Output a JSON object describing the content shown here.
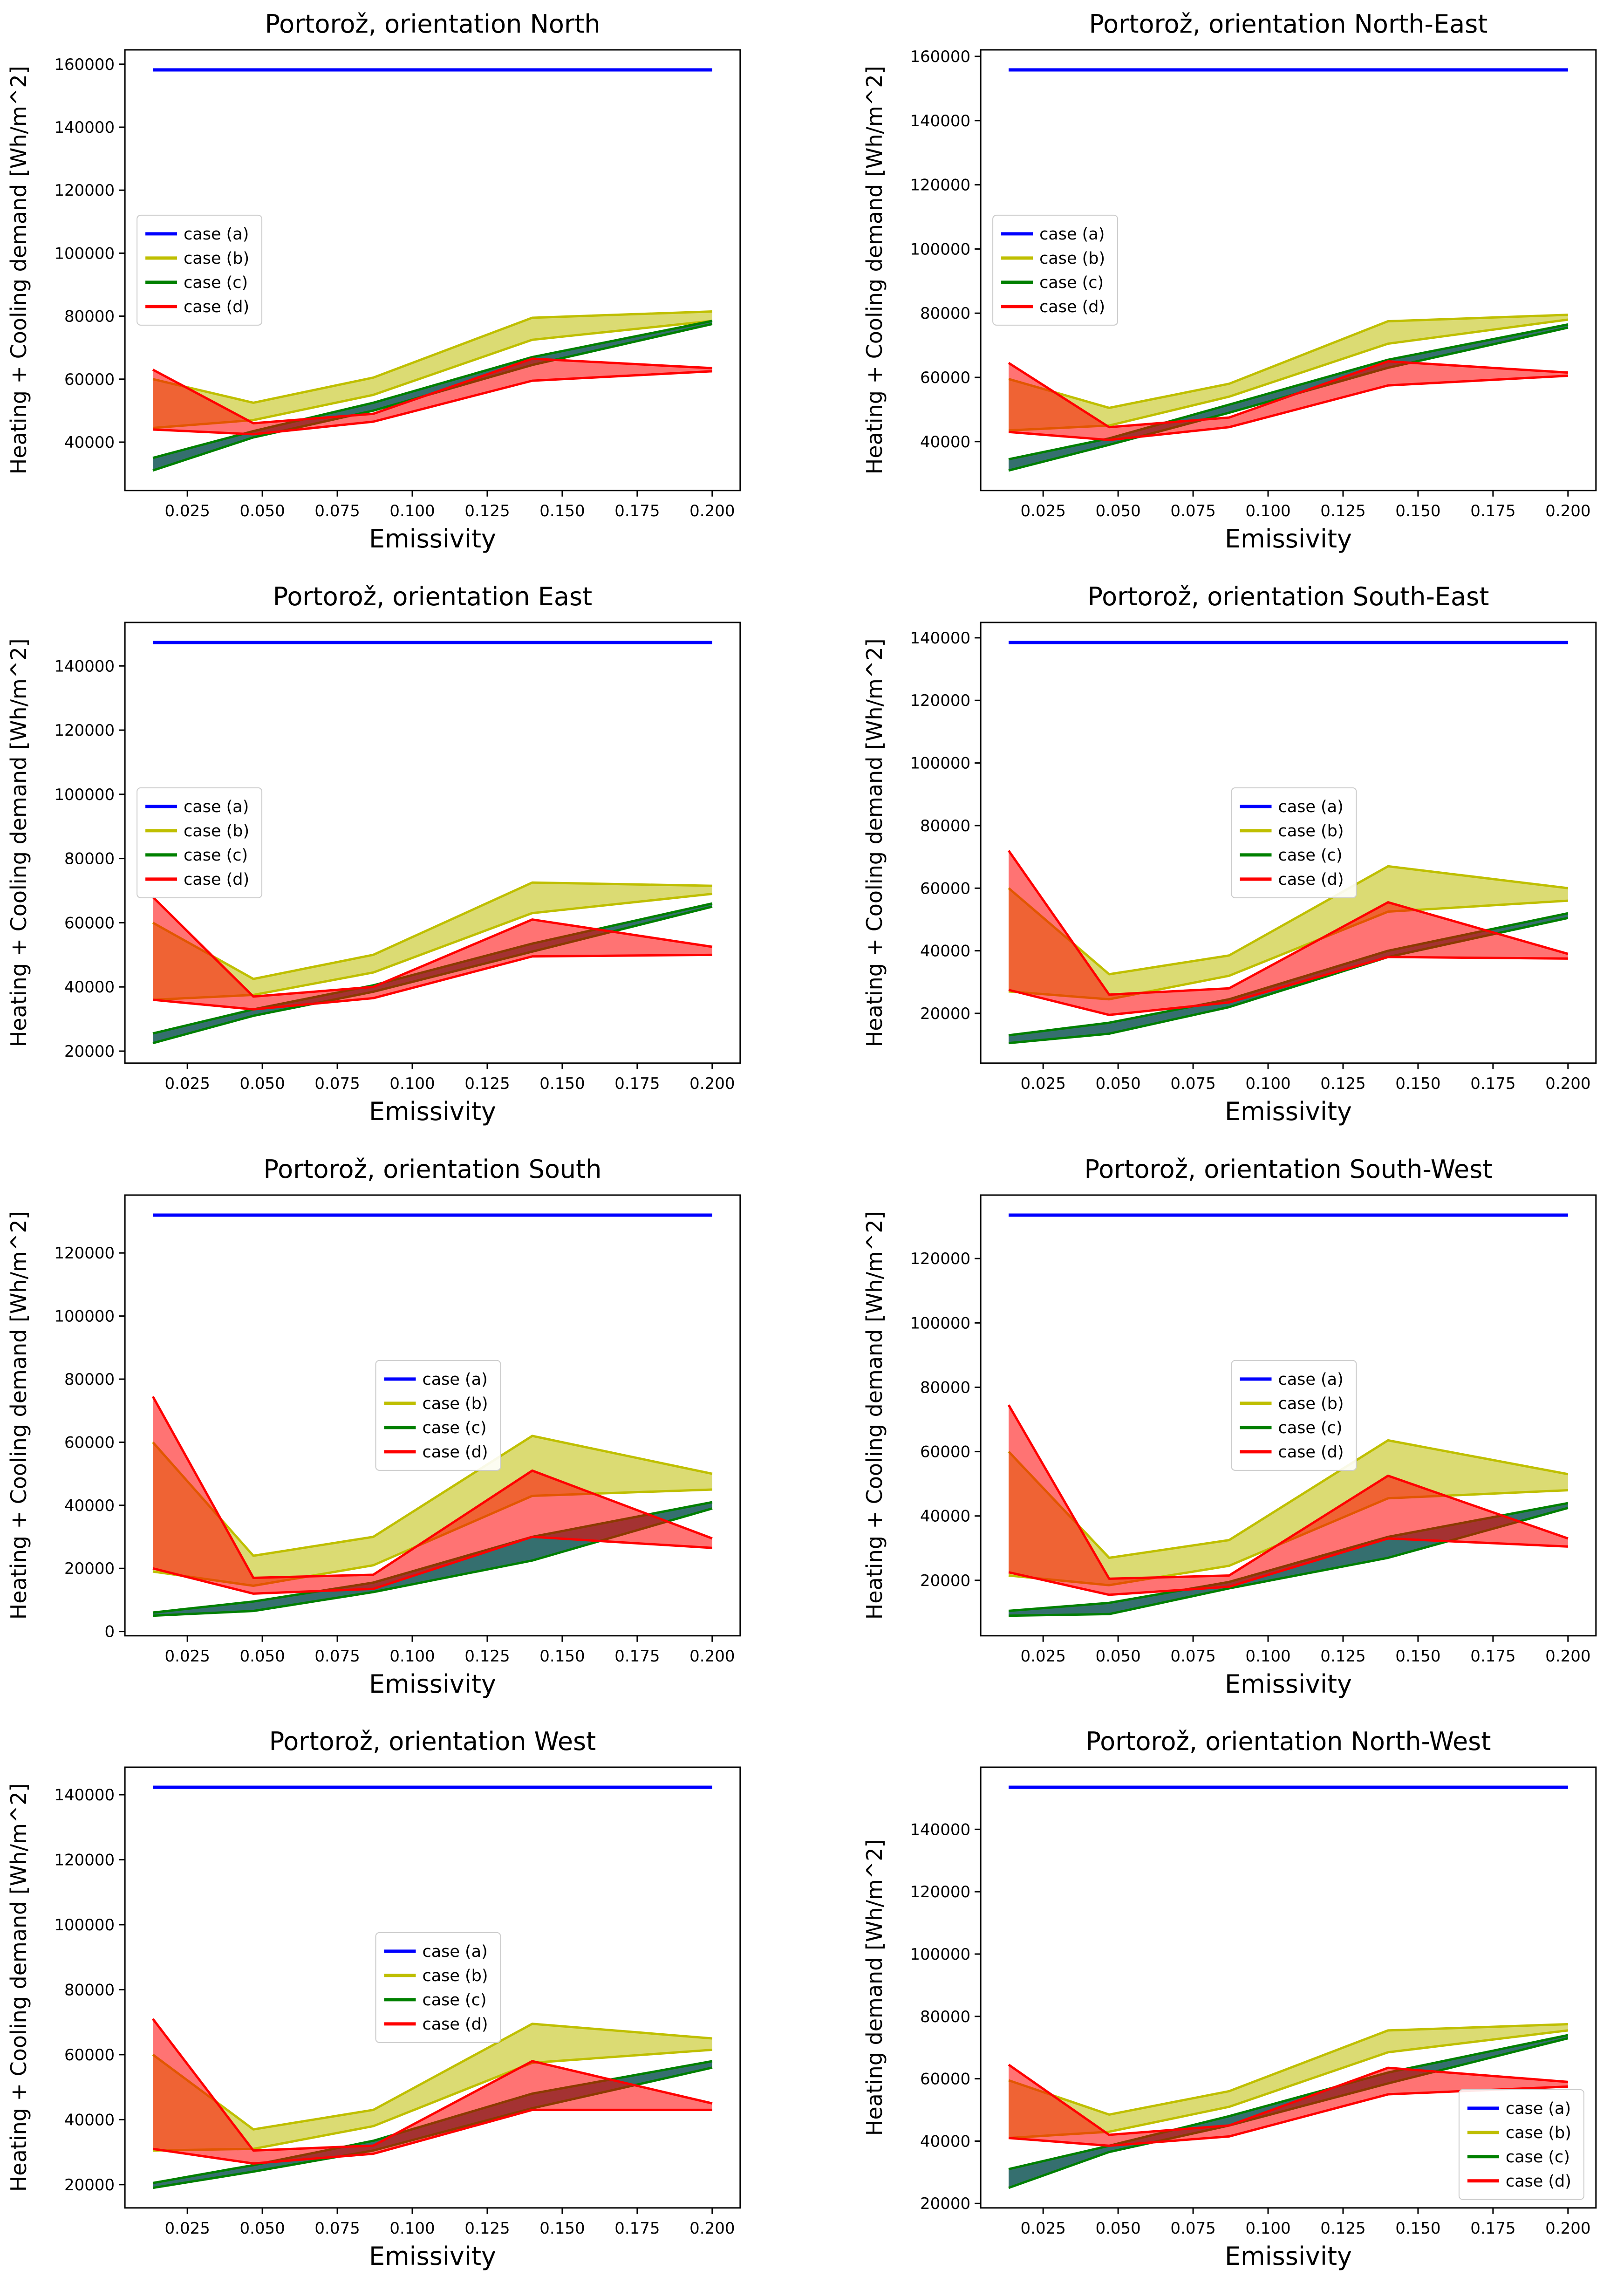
{
  "figure": {
    "background": "#ffffff",
    "rows": 4,
    "columns": 2,
    "legend_labels": [
      "case (a)",
      "case (b)",
      "case (c)",
      "case (d)"
    ],
    "colors": {
      "case_a_line": "#0000ff",
      "case_b_line": "#bfbf00",
      "case_b_fill": "rgba(189,189,0,0.55)",
      "case_c_line": "#008000",
      "case_c_fill": "rgba(31,95,95,0.9)",
      "case_d_line": "#ff0000",
      "case_d_fill": "rgba(255,0,0,0.55)",
      "axes": "#000000",
      "legend_border": "#cccccc"
    }
  },
  "chart_data": [
    {
      "type": "area",
      "slug": "north",
      "title": "Portorož, orientation North",
      "xlabel": "Emissivity",
      "ylabel": "Heating + Cooling demand [Wh/m^2]",
      "x": [
        0.0135,
        0.047,
        0.087,
        0.14,
        0.2
      ],
      "x_ticks": [
        0.025,
        0.05,
        0.075,
        0.1,
        0.125,
        0.15,
        0.175,
        0.2
      ],
      "y_tick_step": 20000,
      "legend_loc": "center-left",
      "case_a": 158200,
      "bands": {
        "b": {
          "upper": [
            60000,
            52500,
            60500,
            79500,
            81500
          ],
          "lower": [
            44500,
            47000,
            55000,
            72500,
            78500
          ]
        },
        "c": {
          "upper": [
            35000,
            43500,
            52500,
            67000,
            78500
          ],
          "lower": [
            31000,
            41500,
            50000,
            64500,
            77500
          ]
        },
        "d": {
          "upper": [
            63000,
            46000,
            49000,
            66500,
            63500
          ],
          "lower": [
            44000,
            42500,
            46500,
            59500,
            62500
          ]
        }
      }
    },
    {
      "type": "area",
      "slug": "north-east",
      "title": "Portorož, orientation North-East",
      "xlabel": "Emissivity",
      "ylabel": "Heating + Cooling demand [Wh/m^2]",
      "x": [
        0.0135,
        0.047,
        0.087,
        0.14,
        0.2
      ],
      "x_ticks": [
        0.025,
        0.05,
        0.075,
        0.1,
        0.125,
        0.15,
        0.175,
        0.2
      ],
      "y_tick_step": 20000,
      "legend_loc": "center-left",
      "case_a": 155800,
      "bands": {
        "b": {
          "upper": [
            59500,
            50500,
            58000,
            77500,
            79500
          ],
          "lower": [
            43500,
            45000,
            54000,
            70500,
            78000
          ]
        },
        "c": {
          "upper": [
            34500,
            41000,
            51500,
            65500,
            76500
          ],
          "lower": [
            31000,
            39000,
            49000,
            63000,
            75500
          ]
        },
        "d": {
          "upper": [
            64500,
            44500,
            47500,
            65000,
            61500
          ],
          "lower": [
            43000,
            40500,
            44500,
            57500,
            60500
          ]
        }
      }
    },
    {
      "type": "area",
      "slug": "east",
      "title": "Portorož, orientation East",
      "xlabel": "Emissivity",
      "ylabel": "Heating + Cooling demand [Wh/m^2]",
      "x": [
        0.0135,
        0.047,
        0.087,
        0.14,
        0.2
      ],
      "x_ticks": [
        0.025,
        0.05,
        0.075,
        0.1,
        0.125,
        0.15,
        0.175,
        0.2
      ],
      "y_tick_step": 20000,
      "legend_loc": "center-left",
      "case_a": 147300,
      "bands": {
        "b": {
          "upper": [
            60000,
            42500,
            50000,
            72500,
            71500
          ],
          "lower": [
            36000,
            37500,
            44500,
            63000,
            69000
          ]
        },
        "c": {
          "upper": [
            25500,
            33000,
            40500,
            53500,
            66000
          ],
          "lower": [
            22500,
            31000,
            38500,
            51000,
            65000
          ]
        },
        "d": {
          "upper": [
            68000,
            37000,
            40000,
            61000,
            52500
          ],
          "lower": [
            36000,
            33000,
            36500,
            49500,
            50000
          ]
        }
      }
    },
    {
      "type": "area",
      "slug": "south-east",
      "title": "Portorož, orientation South-East",
      "xlabel": "Emissivity",
      "ylabel": "Heating + Cooling demand [Wh/m^2]",
      "x": [
        0.0135,
        0.047,
        0.087,
        0.14,
        0.2
      ],
      "x_ticks": [
        0.025,
        0.05,
        0.075,
        0.1,
        0.125,
        0.15,
        0.175,
        0.2
      ],
      "y_tick_step": 20000,
      "legend_loc": "center",
      "case_a": 138500,
      "bands": {
        "b": {
          "upper": [
            60000,
            32500,
            38500,
            67000,
            60000
          ],
          "lower": [
            27000,
            24500,
            32000,
            52500,
            56000
          ]
        },
        "c": {
          "upper": [
            13000,
            17000,
            24500,
            40000,
            52000
          ],
          "lower": [
            10500,
            13500,
            22000,
            38000,
            50500
          ]
        },
        "d": {
          "upper": [
            72000,
            26000,
            28000,
            55500,
            39000
          ],
          "lower": [
            27500,
            19500,
            23500,
            38000,
            37500
          ]
        }
      }
    },
    {
      "type": "area",
      "slug": "south",
      "title": "Portorož, orientation South",
      "xlabel": "Emissivity",
      "ylabel": "Heating + Cooling demand [Wh/m^2]",
      "x": [
        0.0135,
        0.047,
        0.087,
        0.14,
        0.2
      ],
      "x_ticks": [
        0.025,
        0.05,
        0.075,
        0.1,
        0.125,
        0.15,
        0.175,
        0.2
      ],
      "y_tick_step": 20000,
      "legend_loc": "center",
      "case_a": 132000,
      "bands": {
        "b": {
          "upper": [
            60000,
            24000,
            30000,
            62000,
            50000
          ],
          "lower": [
            19000,
            14500,
            21000,
            43000,
            45000
          ]
        },
        "c": {
          "upper": [
            6000,
            9500,
            15500,
            30000,
            41000
          ],
          "lower": [
            5000,
            6500,
            12500,
            22500,
            39000
          ]
        },
        "d": {
          "upper": [
            74500,
            17000,
            18000,
            51000,
            29500
          ],
          "lower": [
            20000,
            12000,
            13500,
            30000,
            26500
          ]
        }
      }
    },
    {
      "type": "area",
      "slug": "south-west",
      "title": "Portorož, orientation South-West",
      "xlabel": "Emissivity",
      "ylabel": "Heating + Cooling demand [Wh/m^2]",
      "x": [
        0.0135,
        0.047,
        0.087,
        0.14,
        0.2
      ],
      "x_ticks": [
        0.025,
        0.05,
        0.075,
        0.1,
        0.125,
        0.15,
        0.175,
        0.2
      ],
      "y_tick_step": 20000,
      "legend_loc": "center",
      "case_a": 133500,
      "bands": {
        "b": {
          "upper": [
            60000,
            27000,
            32500,
            63500,
            53000
          ],
          "lower": [
            21500,
            18500,
            24500,
            45500,
            48000
          ]
        },
        "c": {
          "upper": [
            10500,
            13000,
            19500,
            33500,
            44000
          ],
          "lower": [
            9000,
            9500,
            17500,
            27000,
            42500
          ]
        },
        "d": {
          "upper": [
            74500,
            20500,
            21500,
            52500,
            33000
          ],
          "lower": [
            22500,
            15500,
            18000,
            33000,
            30500
          ]
        }
      }
    },
    {
      "type": "area",
      "slug": "west",
      "title": "Portorož, orientation West",
      "xlabel": "Emissivity",
      "ylabel": "Heating + Cooling demand [Wh/m^2]",
      "x": [
        0.0135,
        0.047,
        0.087,
        0.14,
        0.2
      ],
      "x_ticks": [
        0.025,
        0.05,
        0.075,
        0.1,
        0.125,
        0.15,
        0.175,
        0.2
      ],
      "y_tick_step": 20000,
      "legend_loc": "center",
      "case_a": 142300,
      "bands": {
        "b": {
          "upper": [
            60000,
            37000,
            43000,
            69500,
            65000
          ],
          "lower": [
            30500,
            31000,
            38000,
            57500,
            61500
          ]
        },
        "c": {
          "upper": [
            20500,
            26000,
            33500,
            48000,
            58000
          ],
          "lower": [
            19000,
            24000,
            30500,
            43500,
            56000
          ]
        },
        "d": {
          "upper": [
            71000,
            30500,
            32000,
            58000,
            45000
          ],
          "lower": [
            31000,
            26500,
            29500,
            43000,
            43000
          ]
        }
      }
    },
    {
      "type": "area",
      "slug": "north-west",
      "title": "Portorož, orientation North-West",
      "xlabel": "Emissivity",
      "ylabel": "Heating demand [Wh/m^2]",
      "x": [
        0.0135,
        0.047,
        0.087,
        0.14,
        0.2
      ],
      "x_ticks": [
        0.025,
        0.05,
        0.075,
        0.1,
        0.125,
        0.15,
        0.175,
        0.2
      ],
      "y_tick_step": 20000,
      "legend_loc": "lower-right",
      "case_a": 153500,
      "bands": {
        "b": {
          "upper": [
            59500,
            48500,
            56000,
            75500,
            77500
          ],
          "lower": [
            41000,
            43000,
            51000,
            68500,
            75500
          ]
        },
        "c": {
          "upper": [
            31000,
            38500,
            48000,
            62000,
            74000
          ],
          "lower": [
            25000,
            36500,
            45000,
            58500,
            73000
          ]
        },
        "d": {
          "upper": [
            64500,
            42000,
            45000,
            63500,
            59000
          ],
          "lower": [
            41000,
            38500,
            41500,
            55000,
            57500
          ]
        }
      }
    }
  ]
}
